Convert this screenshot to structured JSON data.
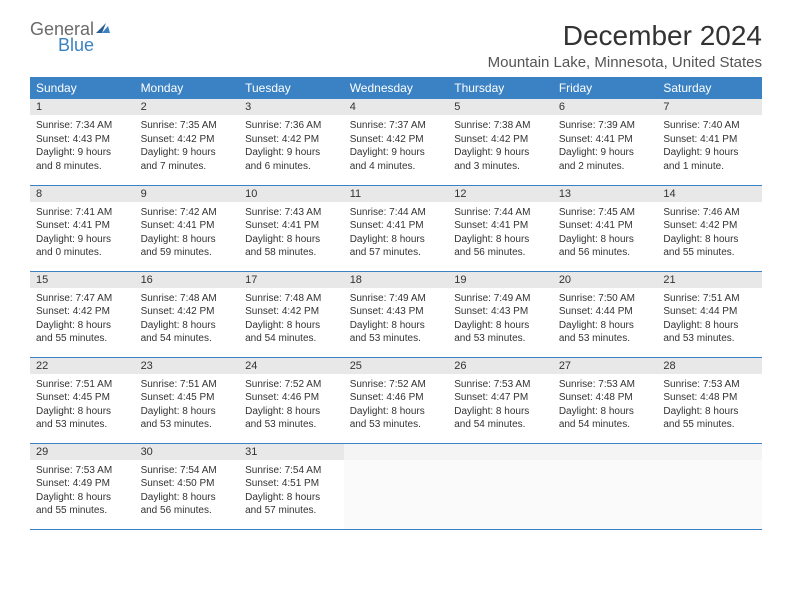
{
  "logo": {
    "line1": "General",
    "line2": "Blue"
  },
  "title": {
    "month": "December 2024",
    "location": "Mountain Lake, Minnesota, United States"
  },
  "columns": [
    "Sunday",
    "Monday",
    "Tuesday",
    "Wednesday",
    "Thursday",
    "Friday",
    "Saturday"
  ],
  "colors": {
    "header_bg": "#3b82c4",
    "header_text": "#ffffff",
    "daynum_bg": "#e8e8e8",
    "row_divider": "#3b82c4",
    "logo_gray": "#6b6b6b",
    "logo_blue": "#3b82c4",
    "text": "#333333",
    "background": "#ffffff"
  },
  "weeks": [
    [
      {
        "day": "1",
        "sunrise": "Sunrise: 7:34 AM",
        "sunset": "Sunset: 4:43 PM",
        "daylight1": "Daylight: 9 hours",
        "daylight2": "and 8 minutes."
      },
      {
        "day": "2",
        "sunrise": "Sunrise: 7:35 AM",
        "sunset": "Sunset: 4:42 PM",
        "daylight1": "Daylight: 9 hours",
        "daylight2": "and 7 minutes."
      },
      {
        "day": "3",
        "sunrise": "Sunrise: 7:36 AM",
        "sunset": "Sunset: 4:42 PM",
        "daylight1": "Daylight: 9 hours",
        "daylight2": "and 6 minutes."
      },
      {
        "day": "4",
        "sunrise": "Sunrise: 7:37 AM",
        "sunset": "Sunset: 4:42 PM",
        "daylight1": "Daylight: 9 hours",
        "daylight2": "and 4 minutes."
      },
      {
        "day": "5",
        "sunrise": "Sunrise: 7:38 AM",
        "sunset": "Sunset: 4:42 PM",
        "daylight1": "Daylight: 9 hours",
        "daylight2": "and 3 minutes."
      },
      {
        "day": "6",
        "sunrise": "Sunrise: 7:39 AM",
        "sunset": "Sunset: 4:41 PM",
        "daylight1": "Daylight: 9 hours",
        "daylight2": "and 2 minutes."
      },
      {
        "day": "7",
        "sunrise": "Sunrise: 7:40 AM",
        "sunset": "Sunset: 4:41 PM",
        "daylight1": "Daylight: 9 hours",
        "daylight2": "and 1 minute."
      }
    ],
    [
      {
        "day": "8",
        "sunrise": "Sunrise: 7:41 AM",
        "sunset": "Sunset: 4:41 PM",
        "daylight1": "Daylight: 9 hours",
        "daylight2": "and 0 minutes."
      },
      {
        "day": "9",
        "sunrise": "Sunrise: 7:42 AM",
        "sunset": "Sunset: 4:41 PM",
        "daylight1": "Daylight: 8 hours",
        "daylight2": "and 59 minutes."
      },
      {
        "day": "10",
        "sunrise": "Sunrise: 7:43 AM",
        "sunset": "Sunset: 4:41 PM",
        "daylight1": "Daylight: 8 hours",
        "daylight2": "and 58 minutes."
      },
      {
        "day": "11",
        "sunrise": "Sunrise: 7:44 AM",
        "sunset": "Sunset: 4:41 PM",
        "daylight1": "Daylight: 8 hours",
        "daylight2": "and 57 minutes."
      },
      {
        "day": "12",
        "sunrise": "Sunrise: 7:44 AM",
        "sunset": "Sunset: 4:41 PM",
        "daylight1": "Daylight: 8 hours",
        "daylight2": "and 56 minutes."
      },
      {
        "day": "13",
        "sunrise": "Sunrise: 7:45 AM",
        "sunset": "Sunset: 4:41 PM",
        "daylight1": "Daylight: 8 hours",
        "daylight2": "and 56 minutes."
      },
      {
        "day": "14",
        "sunrise": "Sunrise: 7:46 AM",
        "sunset": "Sunset: 4:42 PM",
        "daylight1": "Daylight: 8 hours",
        "daylight2": "and 55 minutes."
      }
    ],
    [
      {
        "day": "15",
        "sunrise": "Sunrise: 7:47 AM",
        "sunset": "Sunset: 4:42 PM",
        "daylight1": "Daylight: 8 hours",
        "daylight2": "and 55 minutes."
      },
      {
        "day": "16",
        "sunrise": "Sunrise: 7:48 AM",
        "sunset": "Sunset: 4:42 PM",
        "daylight1": "Daylight: 8 hours",
        "daylight2": "and 54 minutes."
      },
      {
        "day": "17",
        "sunrise": "Sunrise: 7:48 AM",
        "sunset": "Sunset: 4:42 PM",
        "daylight1": "Daylight: 8 hours",
        "daylight2": "and 54 minutes."
      },
      {
        "day": "18",
        "sunrise": "Sunrise: 7:49 AM",
        "sunset": "Sunset: 4:43 PM",
        "daylight1": "Daylight: 8 hours",
        "daylight2": "and 53 minutes."
      },
      {
        "day": "19",
        "sunrise": "Sunrise: 7:49 AM",
        "sunset": "Sunset: 4:43 PM",
        "daylight1": "Daylight: 8 hours",
        "daylight2": "and 53 minutes."
      },
      {
        "day": "20",
        "sunrise": "Sunrise: 7:50 AM",
        "sunset": "Sunset: 4:44 PM",
        "daylight1": "Daylight: 8 hours",
        "daylight2": "and 53 minutes."
      },
      {
        "day": "21",
        "sunrise": "Sunrise: 7:51 AM",
        "sunset": "Sunset: 4:44 PM",
        "daylight1": "Daylight: 8 hours",
        "daylight2": "and 53 minutes."
      }
    ],
    [
      {
        "day": "22",
        "sunrise": "Sunrise: 7:51 AM",
        "sunset": "Sunset: 4:45 PM",
        "daylight1": "Daylight: 8 hours",
        "daylight2": "and 53 minutes."
      },
      {
        "day": "23",
        "sunrise": "Sunrise: 7:51 AM",
        "sunset": "Sunset: 4:45 PM",
        "daylight1": "Daylight: 8 hours",
        "daylight2": "and 53 minutes."
      },
      {
        "day": "24",
        "sunrise": "Sunrise: 7:52 AM",
        "sunset": "Sunset: 4:46 PM",
        "daylight1": "Daylight: 8 hours",
        "daylight2": "and 53 minutes."
      },
      {
        "day": "25",
        "sunrise": "Sunrise: 7:52 AM",
        "sunset": "Sunset: 4:46 PM",
        "daylight1": "Daylight: 8 hours",
        "daylight2": "and 53 minutes."
      },
      {
        "day": "26",
        "sunrise": "Sunrise: 7:53 AM",
        "sunset": "Sunset: 4:47 PM",
        "daylight1": "Daylight: 8 hours",
        "daylight2": "and 54 minutes."
      },
      {
        "day": "27",
        "sunrise": "Sunrise: 7:53 AM",
        "sunset": "Sunset: 4:48 PM",
        "daylight1": "Daylight: 8 hours",
        "daylight2": "and 54 minutes."
      },
      {
        "day": "28",
        "sunrise": "Sunrise: 7:53 AM",
        "sunset": "Sunset: 4:48 PM",
        "daylight1": "Daylight: 8 hours",
        "daylight2": "and 55 minutes."
      }
    ],
    [
      {
        "day": "29",
        "sunrise": "Sunrise: 7:53 AM",
        "sunset": "Sunset: 4:49 PM",
        "daylight1": "Daylight: 8 hours",
        "daylight2": "and 55 minutes."
      },
      {
        "day": "30",
        "sunrise": "Sunrise: 7:54 AM",
        "sunset": "Sunset: 4:50 PM",
        "daylight1": "Daylight: 8 hours",
        "daylight2": "and 56 minutes."
      },
      {
        "day": "31",
        "sunrise": "Sunrise: 7:54 AM",
        "sunset": "Sunset: 4:51 PM",
        "daylight1": "Daylight: 8 hours",
        "daylight2": "and 57 minutes."
      },
      {
        "empty": true
      },
      {
        "empty": true
      },
      {
        "empty": true
      },
      {
        "empty": true
      }
    ]
  ]
}
